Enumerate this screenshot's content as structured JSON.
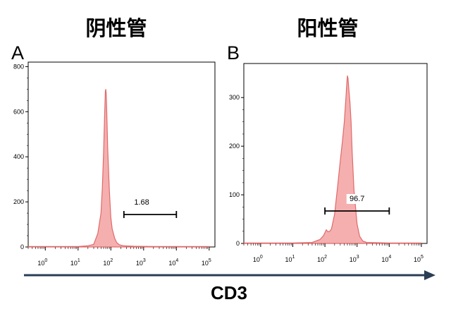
{
  "panel_titles": [
    "阴性管",
    "阳性管"
  ],
  "panel_letters": [
    "A",
    "B"
  ],
  "x_axis_label": "CD3",
  "colors": {
    "fill": "#f4a6a6",
    "stroke": "#e06a6a",
    "frame": "#000000",
    "arrow": "#2a3d55"
  },
  "chart_data": [
    {
      "type": "area",
      "panel": "A",
      "title": "阴性管",
      "xscale": "log",
      "xlim": [
        0.3,
        150000
      ],
      "ylim": [
        0,
        820
      ],
      "x_ticks": [
        "10^0",
        "10^1",
        "10^2",
        "10^3",
        "10^4",
        "10^5"
      ],
      "y_ticks": [
        0,
        200,
        400,
        600,
        800
      ],
      "series": [
        {
          "x": [
            0.3,
            1,
            3,
            10,
            20,
            30,
            40,
            50,
            55,
            60,
            65,
            68,
            70,
            72,
            75,
            80,
            90,
            100,
            110,
            130,
            150,
            180,
            250,
            500,
            2000,
            10000,
            100000
          ],
          "y": [
            2,
            2,
            2,
            2,
            5,
            12,
            60,
            150,
            260,
            420,
            600,
            690,
            700,
            680,
            600,
            440,
            250,
            130,
            80,
            40,
            20,
            10,
            5,
            3,
            2,
            2,
            2
          ]
        }
      ],
      "gate": {
        "label": "1.68",
        "x_range": [
          250,
          10000
        ]
      }
    },
    {
      "type": "area",
      "panel": "B",
      "title": "阳性管",
      "xscale": "log",
      "xlim": [
        0.3,
        150000
      ],
      "ylim": [
        0,
        370
      ],
      "x_ticks": [
        "10^0",
        "10^1",
        "10^2",
        "10^3",
        "10^4",
        "10^5"
      ],
      "y_ticks": [
        0,
        100,
        200,
        300
      ],
      "series": [
        {
          "x": [
            0.3,
            1,
            10,
            40,
            70,
            90,
            100,
            110,
            125,
            140,
            160,
            200,
            250,
            300,
            350,
            400,
            450,
            480,
            500,
            520,
            550,
            600,
            650,
            700,
            800,
            1000,
            1200,
            1500,
            2000,
            10000,
            100000
          ],
          "y": [
            1,
            1,
            1,
            2,
            8,
            16,
            22,
            28,
            24,
            25,
            30,
            60,
            120,
            170,
            210,
            250,
            300,
            330,
            345,
            340,
            320,
            290,
            250,
            190,
            110,
            40,
            15,
            5,
            2,
            1,
            1
          ]
        }
      ],
      "gate": {
        "label": "96.7",
        "x_range": [
          100,
          10000
        ]
      }
    }
  ]
}
